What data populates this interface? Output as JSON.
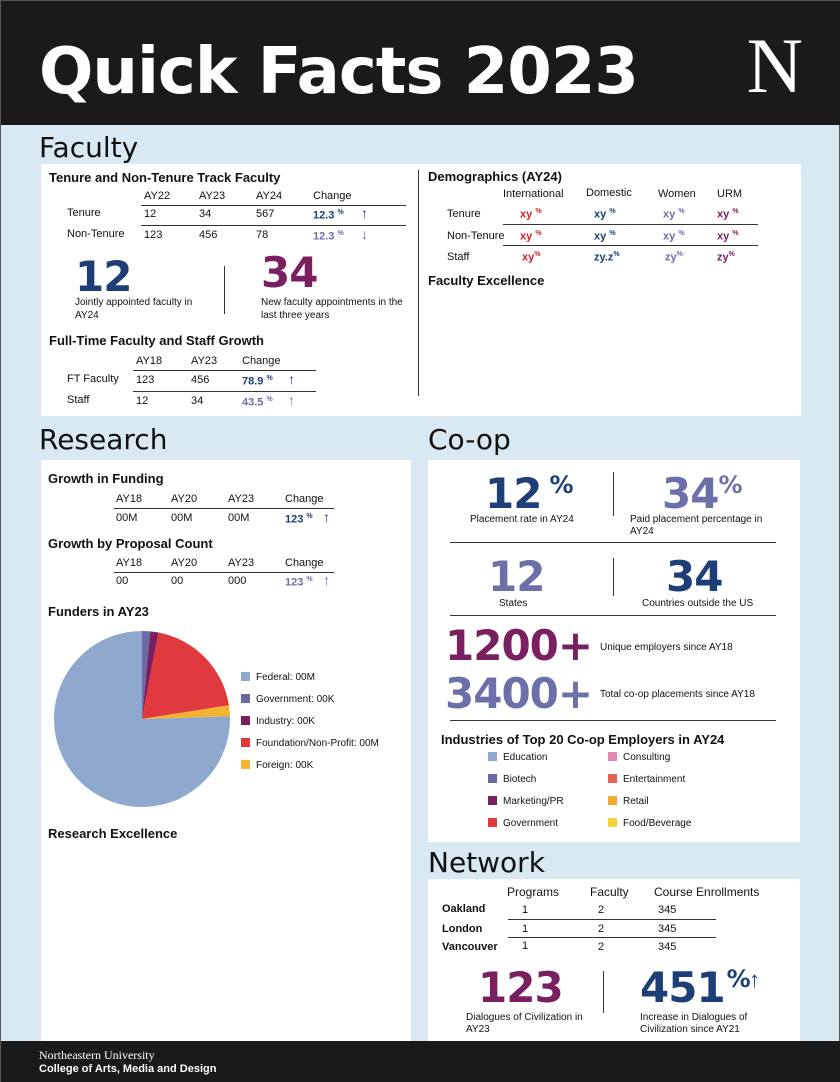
{
  "header": {
    "title": "Quick Facts 2023",
    "logo": "N"
  },
  "faculty": {
    "section_title": "Faculty",
    "tenure": {
      "title": "Tenure and Non-Tenure Track Faculty",
      "columns": [
        "AY22",
        "AY23",
        "AY24",
        "Change"
      ],
      "rows": [
        {
          "label": "Tenure",
          "values": [
            "12",
            "34",
            "567"
          ],
          "change": "12.3",
          "pct": "%"
        },
        {
          "label": "Non-Tenure",
          "values": [
            "123",
            "456",
            "78"
          ],
          "change": "12.3",
          "pct": "%"
        }
      ]
    },
    "stat_joint": {
      "value": "12",
      "label": "Jointly appointed faculty in AY24"
    },
    "stat_new": {
      "value": "34",
      "label": "New faculty appointments in the last three years"
    },
    "growth": {
      "title": "Full-Time Faculty and Staff Growth",
      "columns": [
        "AY18",
        "AY23",
        "Change"
      ],
      "rows": [
        {
          "label": "FT Faculty",
          "values": [
            "123",
            "456"
          ],
          "change": "78.9",
          "pct": "%"
        },
        {
          "label": "Staff",
          "values": [
            "12",
            "34"
          ],
          "change": "43.5",
          "pct": "%"
        }
      ]
    },
    "demographics": {
      "title": "Demographics (AY24)",
      "columns": [
        "International",
        "Domestic",
        "Women",
        "URM"
      ],
      "rows": [
        {
          "label": "Tenure",
          "values": [
            "xy",
            "xy",
            "xy",
            "xy"
          ]
        },
        {
          "label": "Non-Tenure",
          "values": [
            "xy",
            "xy",
            "xy",
            "xy"
          ]
        },
        {
          "label": "Staff",
          "values": [
            "xy",
            "zy.z",
            "zy",
            "zy"
          ]
        }
      ],
      "pct": "%"
    },
    "excellence": "Faculty Excellence"
  },
  "research": {
    "section_title": "Research",
    "funding": {
      "title": "Growth in Funding",
      "columns": [
        "AY18",
        "AY20",
        "AY23",
        "Change"
      ],
      "values": [
        "00M",
        "00M",
        "00M"
      ],
      "change": "123",
      "pct": "%"
    },
    "proposals": {
      "title": "Growth by Proposal Count",
      "columns": [
        "AY18",
        "AY20",
        "AY23",
        "Change"
      ],
      "values": [
        "00",
        "00",
        "000"
      ],
      "change": "123",
      "pct": "%"
    },
    "funders_title": "Funders in AY23",
    "excellence": "Research Excellence"
  },
  "chart_data": {
    "type": "pie",
    "title": "Funders in AY23",
    "slices": [
      {
        "label": "Federal: 00M",
        "value": 75.5,
        "color": "#8fa9ce"
      },
      {
        "label": "Government: 00K",
        "value": 1.5,
        "color": "#6a6aa4"
      },
      {
        "label": "Industry: 00K",
        "value": 1.5,
        "color": "#7a1f5f"
      },
      {
        "label": "Foundation/Non-Profit: 00M",
        "value": 19.5,
        "color": "#e03a3e"
      },
      {
        "label": "Foreign: 00K",
        "value": 2.0,
        "color": "#f4b431"
      }
    ]
  },
  "coop": {
    "section_title": "Co-op",
    "placement": {
      "value": "12",
      "pct": "%",
      "label": "Placement rate in AY24"
    },
    "paid": {
      "value": "34",
      "pct": "%",
      "label": "Paid placement percentage in AY24"
    },
    "states": {
      "value": "12",
      "label": "States"
    },
    "countries": {
      "value": "34",
      "label": "Countries outside the US"
    },
    "employers": {
      "value": "1200+",
      "label": "Unique employers since AY18"
    },
    "placements": {
      "value": "3400+",
      "label": "Total co-op placements since AY18"
    },
    "industries_title": "Industries of Top 20 Co-op Employers in AY24",
    "industries": [
      {
        "label": "Education",
        "color": "#8fa9ce"
      },
      {
        "label": "Consulting",
        "color": "#e589b4"
      },
      {
        "label": "Biotech",
        "color": "#6a6aa4"
      },
      {
        "label": "Entertainment",
        "color": "#e2654d"
      },
      {
        "label": "Marketing/PR",
        "color": "#7a1f5f"
      },
      {
        "label": "Retail",
        "color": "#f4a931"
      },
      {
        "label": "Government",
        "color": "#e03a3e"
      },
      {
        "label": "Food/Beverage",
        "color": "#f3d23a"
      }
    ]
  },
  "network": {
    "section_title": "Network",
    "columns": [
      "Programs",
      "Faculty",
      "Course Enrollments"
    ],
    "rows": [
      {
        "label": "Oakland",
        "values": [
          "1",
          "2",
          "345"
        ]
      },
      {
        "label": "London",
        "values": [
          "1",
          "2",
          "345"
        ]
      },
      {
        "label": "Vancouver",
        "values": [
          "1",
          "2",
          "345"
        ]
      }
    ],
    "dialogues": {
      "value": "123",
      "label": "Dialogues of Civilization in AY23"
    },
    "increase": {
      "value": "451",
      "pct": "%",
      "label": "Increase in Dialogues of Civilization since AY21"
    }
  },
  "footer": {
    "line1": "Northeastern University",
    "line2": "College of Arts, Media and Design"
  }
}
